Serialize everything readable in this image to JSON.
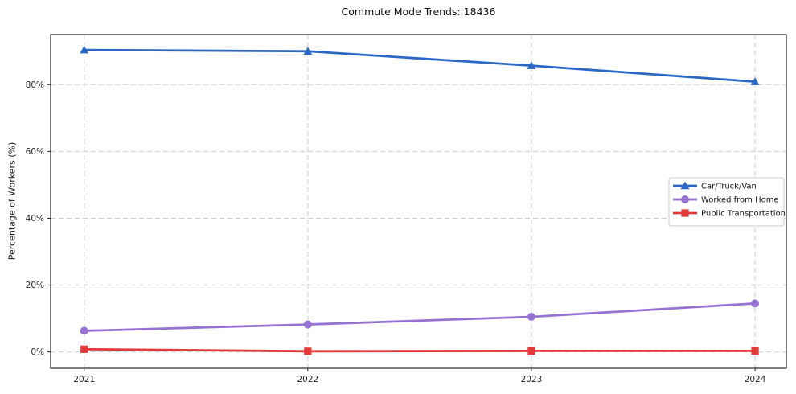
{
  "figure": {
    "background": "#ffffff"
  },
  "chart_data": {
    "type": "line",
    "title": "Commute Mode Trends: 18436",
    "xlabel": "",
    "ylabel": "Percentage of Workers (%)",
    "x": [
      2021,
      2022,
      2023,
      2024
    ],
    "x_tick_labels": [
      "2021",
      "2022",
      "2023",
      "2024"
    ],
    "y_ticks": [
      0,
      20,
      40,
      60,
      80
    ],
    "y_tick_labels": [
      "0%",
      "20%",
      "40%",
      "60%",
      "80%"
    ],
    "xlim": [
      2020.85,
      2024.14
    ],
    "ylim": [
      -4.9,
      95.0
    ],
    "grid": true,
    "grid_style": "dashed",
    "legend_position": "center right",
    "series": [
      {
        "name": "Car/Truck/Van",
        "color": "#2b68c5",
        "marker": "triangle",
        "values": [
          90.4,
          90.0,
          85.7,
          80.9
        ]
      },
      {
        "name": "Worked from Home",
        "color": "#9673d2",
        "marker": "circle",
        "values": [
          6.3,
          8.2,
          10.5,
          14.5
        ]
      },
      {
        "name": "Public Transportation",
        "color": "#e23a3a",
        "marker": "square",
        "values": [
          0.8,
          0.2,
          0.3,
          0.3
        ]
      }
    ]
  },
  "colors": {
    "grid": "#cccccc",
    "spine": "#262626",
    "tick_text": "#262626",
    "legend_border": "#cccccc",
    "legend_background": "#ffffff",
    "background": "#ffffff"
  }
}
